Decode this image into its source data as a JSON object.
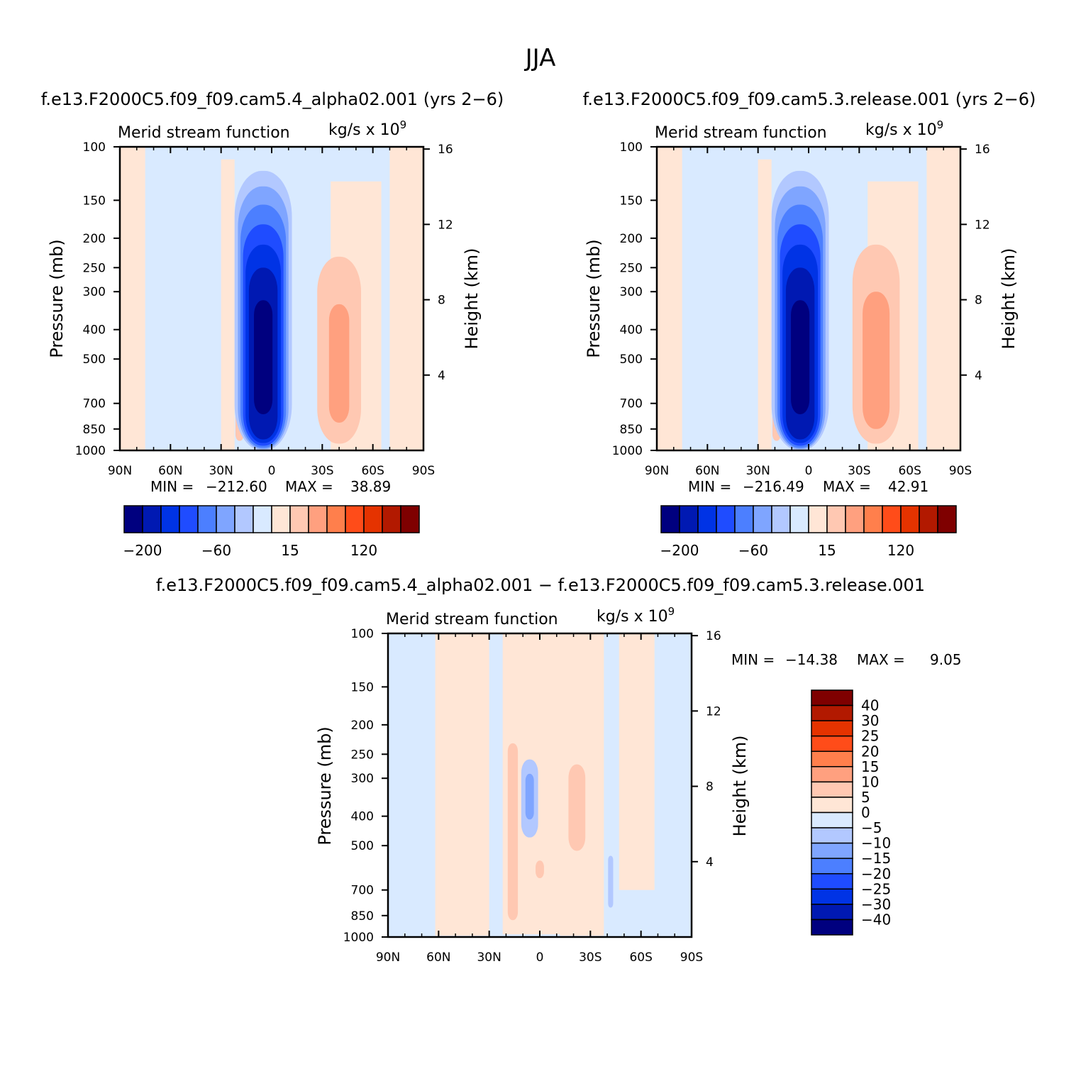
{
  "page": {
    "season": "JJA"
  },
  "panel_titles": {
    "left": "f.e13.F2000C5.f09_f09.cam5.4_alpha02.001 (yrs 2−6)",
    "right": "f.e13.F2000C5.f09_f09.cam5.3.release.001 (yrs 2−6)",
    "diff": "f.e13.F2000C5.f09_f09.cam5.4_alpha02.001 − f.e13.F2000C5.f09_f09.cam5.3.release.001"
  },
  "colors": {
    "main_palette": [
      "#00007f",
      "#0019b2",
      "#0033e5",
      "#1f4cff",
      "#4c7fff",
      "#7fa5ff",
      "#b2c8ff",
      "#d9eaff",
      "#ffe6d6",
      "#ffc8b2",
      "#ffa07f",
      "#ff7f4c",
      "#ff4c19",
      "#e53300",
      "#b21900",
      "#7f0000"
    ],
    "diff_palette": [
      "#00007f",
      "#0019b2",
      "#0033e5",
      "#1f4cff",
      "#4c7fff",
      "#7fa5ff",
      "#b2c8ff",
      "#d9eaff",
      "#ffe6d6",
      "#ffc8b2",
      "#ffa07f",
      "#ff7f4c",
      "#ff4c19",
      "#e53300",
      "#b21900",
      "#7f0000"
    ]
  },
  "chart_data": [
    {
      "type": "heatmap",
      "panel": "left",
      "title": "Merid stream function",
      "units_label": "kg/s x 10",
      "units_exp": "9",
      "ylabel": "Pressure (mb)",
      "ylabel_right": "Height (km)",
      "x_ticks": [
        "90N",
        "60N",
        "30N",
        "0",
        "30S",
        "60S",
        "90S"
      ],
      "x_tick_values": [
        90,
        60,
        30,
        0,
        -30,
        -60,
        -90
      ],
      "xlim": [
        90,
        -90
      ],
      "y_ticks": [
        100,
        150,
        200,
        250,
        300,
        400,
        500,
        700,
        850,
        1000
      ],
      "ylim": [
        1000,
        100
      ],
      "y_scale": "log",
      "height_ticks": [
        4,
        8,
        12,
        16
      ],
      "stats": {
        "min_label": "MIN =",
        "min": "−212.60",
        "max_label": "MAX =",
        "max": "38.89"
      },
      "colorbar": {
        "orientation": "horizontal",
        "labels": [
          "−200",
          "−60",
          "15",
          "120"
        ]
      },
      "features": [
        {
          "name": "southern-hemisphere-cell",
          "lat": 5,
          "p_top": 120,
          "p_bot": 990,
          "width_deg": 30,
          "sign": "neg",
          "peak": -212.6
        },
        {
          "name": "northern-positive-cell",
          "lat": -40,
          "p_top": 200,
          "p_bot": 950,
          "width_deg": 25,
          "sign": "pos",
          "peak": 38.89
        }
      ]
    },
    {
      "type": "heatmap",
      "panel": "right",
      "title": "Merid stream function",
      "units_label": "kg/s x 10",
      "units_exp": "9",
      "ylabel": "Pressure (mb)",
      "ylabel_right": "Height (km)",
      "x_ticks": [
        "90N",
        "60N",
        "30N",
        "0",
        "30S",
        "60S",
        "90S"
      ],
      "x_tick_values": [
        90,
        60,
        30,
        0,
        -30,
        -60,
        -90
      ],
      "xlim": [
        90,
        -90
      ],
      "y_ticks": [
        100,
        150,
        200,
        250,
        300,
        400,
        500,
        700,
        850,
        1000
      ],
      "ylim": [
        1000,
        100
      ],
      "y_scale": "log",
      "height_ticks": [
        4,
        8,
        12,
        16
      ],
      "stats": {
        "min_label": "MIN =",
        "min": "−216.49",
        "max_label": "MAX =",
        "max": "42.91"
      },
      "colorbar": {
        "orientation": "horizontal",
        "labels": [
          "−200",
          "−60",
          "15",
          "120"
        ]
      },
      "features": [
        {
          "name": "southern-hemisphere-cell",
          "lat": 5,
          "p_top": 120,
          "p_bot": 990,
          "width_deg": 30,
          "sign": "neg",
          "peak": -216.49
        },
        {
          "name": "northern-positive-cell",
          "lat": -40,
          "p_top": 180,
          "p_bot": 950,
          "width_deg": 28,
          "sign": "pos",
          "peak": 42.91
        }
      ]
    },
    {
      "type": "heatmap",
      "panel": "diff",
      "title": "Merid stream function",
      "units_label": "kg/s x 10",
      "units_exp": "9",
      "ylabel": "Pressure (mb)",
      "ylabel_right": "Height (km)",
      "x_ticks": [
        "90N",
        "60N",
        "30N",
        "0",
        "30S",
        "60S",
        "90S"
      ],
      "x_tick_values": [
        90,
        60,
        30,
        0,
        -30,
        -60,
        -90
      ],
      "xlim": [
        90,
        -90
      ],
      "y_ticks": [
        100,
        150,
        200,
        250,
        300,
        400,
        500,
        700,
        850,
        1000
      ],
      "ylim": [
        1000,
        100
      ],
      "y_scale": "log",
      "height_ticks": [
        4,
        8,
        12,
        16
      ],
      "stats": {
        "min_label": "MIN =",
        "min": "−14.38",
        "max_label": "MAX =",
        "max": "9.05"
      },
      "colorbar": {
        "orientation": "vertical",
        "labels": [
          "40",
          "30",
          "25",
          "20",
          "15",
          "10",
          "5",
          "0",
          "−5",
          "−10",
          "−15",
          "−20",
          "−25",
          "−30",
          "−40"
        ]
      }
    }
  ]
}
